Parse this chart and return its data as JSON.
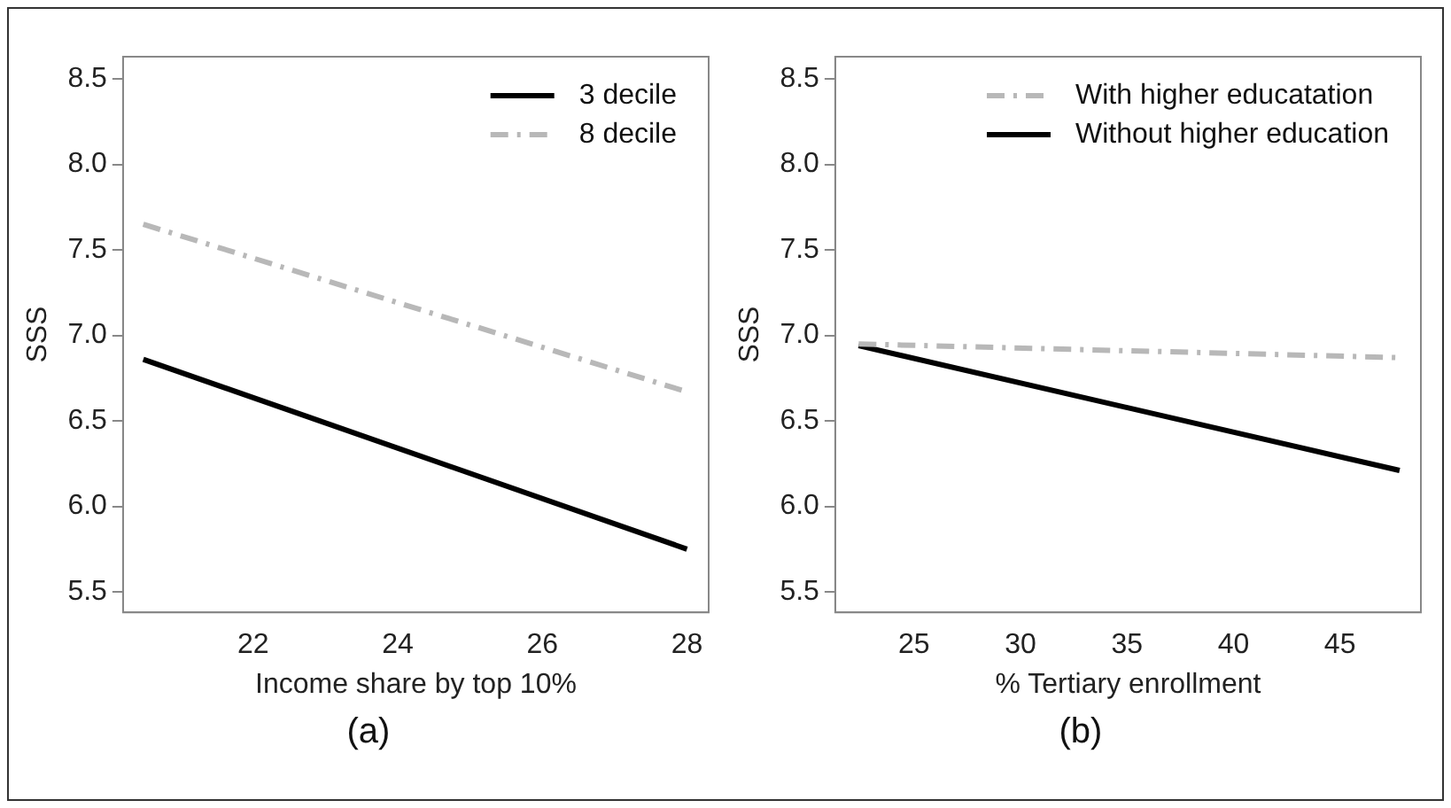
{
  "chart_data": [
    {
      "type": "line",
      "xlabel": "Income share by top 10%",
      "ylabel": "SSS",
      "annotations": [
        "(a)"
      ],
      "legend": "top right",
      "grid": false,
      "marker": "none",
      "xlim": [
        20.2,
        28.3
      ],
      "xticks": [
        22,
        24,
        26,
        28
      ],
      "ylim": [
        5.38,
        8.63
      ],
      "yticks": [
        5.5,
        {
          "value": 6,
          "label": "6.0"
        },
        6.5,
        {
          "value": 7,
          "label": "7.0"
        },
        7.5,
        {
          "value": 8,
          "label": "8.0"
        },
        8.5
      ],
      "series": [
        {
          "name": "3 decile",
          "color": "#000000",
          "line_style": "solid",
          "x": [
            20.48,
            28
          ],
          "values": [
            6.86,
            5.75
          ]
        },
        {
          "name": "8 decile",
          "color": "#b8b8b8",
          "line_style": "dashed",
          "x": [
            20.48,
            28
          ],
          "values": [
            7.65,
            6.67
          ]
        }
      ]
    },
    {
      "type": "line",
      "xlabel": "% Tertiary enrollment",
      "ylabel": "SSS",
      "annotations": [
        "(b)"
      ],
      "legend": "top right",
      "grid": false,
      "marker": "none",
      "xlim": [
        21.3,
        48.8
      ],
      "xticks": [
        25,
        30,
        35,
        40,
        45
      ],
      "ylim": [
        5.38,
        8.63
      ],
      "yticks": [
        5.5,
        {
          "value": 6,
          "label": "6.0"
        },
        6.5,
        {
          "value": 7,
          "label": "7.0"
        },
        7.5,
        {
          "value": 8,
          "label": "8.0"
        },
        8.5
      ],
      "series": [
        {
          "name": "With higher educatation",
          "color": "#b8b8b8",
          "line_style": "dashed",
          "x": [
            22.4,
            47.8
          ],
          "values": [
            6.95,
            6.87
          ]
        },
        {
          "name": "Without higher education",
          "color": "#000000",
          "line_style": "solid",
          "x": [
            22.4,
            47.8
          ],
          "values": [
            6.94,
            6.21
          ]
        }
      ]
    }
  ]
}
